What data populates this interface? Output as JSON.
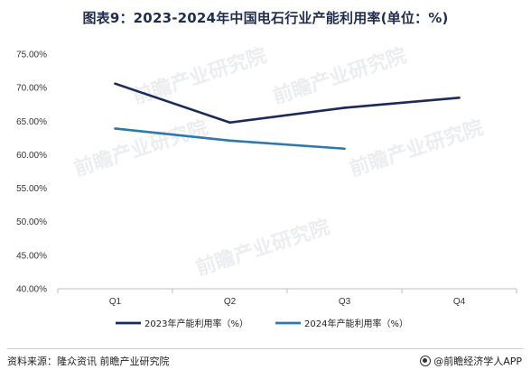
{
  "chart_data": {
    "type": "line",
    "title": "图表9：2023-2024年中国电石行业产能利用率(单位：%)",
    "categories": [
      "Q1",
      "Q2",
      "Q3",
      "Q4"
    ],
    "y_ticks": [
      "75.00%",
      "70.00%",
      "65.00%",
      "60.00%",
      "55.00%",
      "50.00%",
      "45.00%",
      "40.00%"
    ],
    "ylim": [
      40,
      75
    ],
    "series": [
      {
        "name": "2023年产能利用率（%）",
        "color": "#1b2a59",
        "values": [
          70.6,
          64.8,
          67.0,
          68.5
        ]
      },
      {
        "name": "2024年产能利用率（%）",
        "color": "#2f78ab",
        "values": [
          63.9,
          62.1,
          60.9,
          null
        ]
      }
    ],
    "legend_position": "bottom",
    "grid": false
  },
  "watermark": "前瞻产业研究院",
  "footer": {
    "source": "资料来源：隆众资讯 前瞻产业研究院",
    "brand": "@前瞻经济学人APP"
  }
}
